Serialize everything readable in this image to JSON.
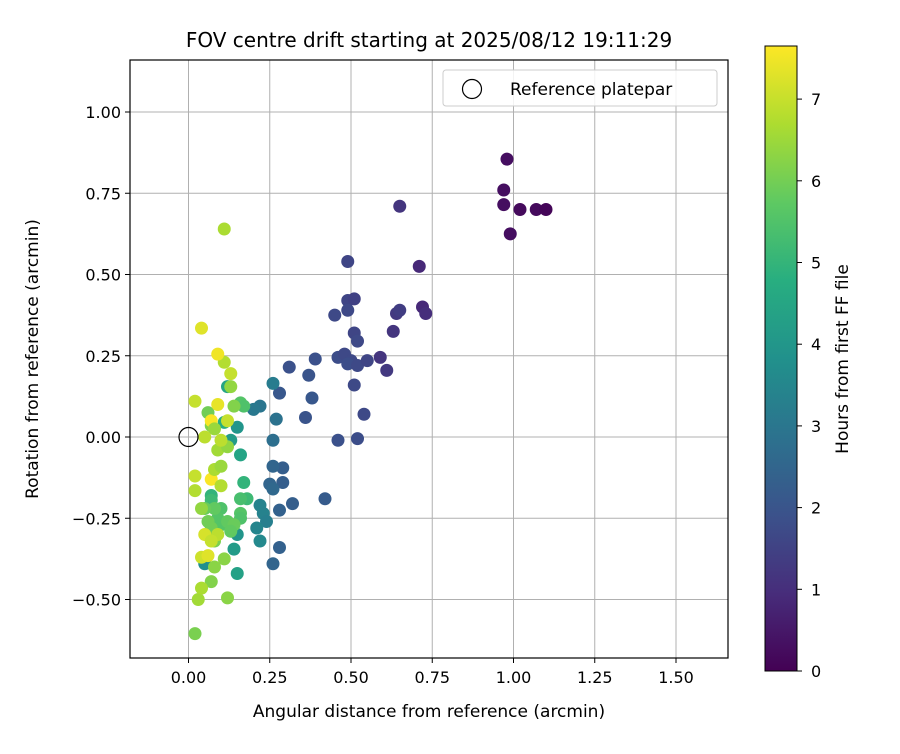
{
  "chart_data": {
    "type": "scatter",
    "title": "FOV centre drift starting at 2025/08/12 19:11:29",
    "xlabel": "Angular distance from reference (arcmin)",
    "ylabel": "Rotation from reference (arcmin)",
    "xlim": [
      -0.18,
      1.66
    ],
    "ylim": [
      -0.68,
      1.16
    ],
    "xticks": [
      "0.00",
      "0.25",
      "0.50",
      "0.75",
      "1.00",
      "1.25",
      "1.50"
    ],
    "yticks": [
      "−0.50",
      "−0.25",
      "0.00",
      "0.25",
      "0.50",
      "0.75",
      "1.00"
    ],
    "grid": true,
    "legend": {
      "placement": "top-right",
      "label": "Reference platepar"
    },
    "reference_point": {
      "x": 0.0,
      "y": 0.0
    },
    "colorbar": {
      "label": "Hours from first FF file",
      "range": [
        0,
        7.65
      ],
      "ticks": [
        "0",
        "1",
        "2",
        "3",
        "4",
        "5",
        "6",
        "7"
      ],
      "colormap": "viridis"
    },
    "points": [
      {
        "x": 0.98,
        "y": 0.855,
        "h": 0.3
      },
      {
        "x": 0.97,
        "y": 0.76,
        "h": 0.3
      },
      {
        "x": 0.97,
        "y": 0.715,
        "h": 0.3
      },
      {
        "x": 1.02,
        "y": 0.7,
        "h": 0.2
      },
      {
        "x": 1.07,
        "y": 0.7,
        "h": 0.2
      },
      {
        "x": 1.1,
        "y": 0.7,
        "h": 0.1
      },
      {
        "x": 0.99,
        "y": 0.625,
        "h": 0.3
      },
      {
        "x": 0.65,
        "y": 0.71,
        "h": 1.2
      },
      {
        "x": 0.71,
        "y": 0.525,
        "h": 0.9
      },
      {
        "x": 0.72,
        "y": 0.4,
        "h": 0.9
      },
      {
        "x": 0.73,
        "y": 0.38,
        "h": 1.0
      },
      {
        "x": 0.64,
        "y": 0.38,
        "h": 1.3
      },
      {
        "x": 0.65,
        "y": 0.39,
        "h": 1.4
      },
      {
        "x": 0.63,
        "y": 0.325,
        "h": 1.2
      },
      {
        "x": 0.59,
        "y": 0.245,
        "h": 1.2
      },
      {
        "x": 0.61,
        "y": 0.205,
        "h": 1.3
      },
      {
        "x": 0.49,
        "y": 0.54,
        "h": 1.6
      },
      {
        "x": 0.49,
        "y": 0.42,
        "h": 1.6
      },
      {
        "x": 0.51,
        "y": 0.425,
        "h": 1.5
      },
      {
        "x": 0.49,
        "y": 0.39,
        "h": 1.7
      },
      {
        "x": 0.45,
        "y": 0.375,
        "h": 1.7
      },
      {
        "x": 0.51,
        "y": 0.32,
        "h": 1.6
      },
      {
        "x": 0.52,
        "y": 0.295,
        "h": 1.7
      },
      {
        "x": 0.46,
        "y": 0.245,
        "h": 1.8
      },
      {
        "x": 0.48,
        "y": 0.255,
        "h": 1.7
      },
      {
        "x": 0.5,
        "y": 0.235,
        "h": 1.7
      },
      {
        "x": 0.49,
        "y": 0.225,
        "h": 1.8
      },
      {
        "x": 0.52,
        "y": 0.22,
        "h": 1.7
      },
      {
        "x": 0.55,
        "y": 0.235,
        "h": 1.6
      },
      {
        "x": 0.51,
        "y": 0.16,
        "h": 1.7
      },
      {
        "x": 0.54,
        "y": 0.07,
        "h": 1.7
      },
      {
        "x": 0.52,
        "y": -0.005,
        "h": 1.8
      },
      {
        "x": 0.46,
        "y": -0.01,
        "h": 1.9
      },
      {
        "x": 0.39,
        "y": 0.24,
        "h": 1.9
      },
      {
        "x": 0.37,
        "y": 0.19,
        "h": 2.0
      },
      {
        "x": 0.38,
        "y": 0.12,
        "h": 2.1
      },
      {
        "x": 0.36,
        "y": 0.06,
        "h": 2.0
      },
      {
        "x": 0.31,
        "y": 0.215,
        "h": 1.9
      },
      {
        "x": 0.28,
        "y": 0.135,
        "h": 2.1
      },
      {
        "x": 0.42,
        "y": -0.19,
        "h": 2.2
      },
      {
        "x": 0.32,
        "y": -0.205,
        "h": 2.3
      },
      {
        "x": 0.28,
        "y": -0.225,
        "h": 2.4
      },
      {
        "x": 0.29,
        "y": -0.095,
        "h": 2.3
      },
      {
        "x": 0.29,
        "y": -0.14,
        "h": 2.3
      },
      {
        "x": 0.26,
        "y": -0.09,
        "h": 2.5
      },
      {
        "x": 0.25,
        "y": -0.145,
        "h": 2.5
      },
      {
        "x": 0.26,
        "y": -0.16,
        "h": 2.6
      },
      {
        "x": 0.28,
        "y": -0.34,
        "h": 2.4
      },
      {
        "x": 0.26,
        "y": -0.39,
        "h": 2.5
      },
      {
        "x": 0.26,
        "y": -0.01,
        "h": 2.8
      },
      {
        "x": 0.27,
        "y": 0.055,
        "h": 2.9
      },
      {
        "x": 0.26,
        "y": 0.165,
        "h": 3.2
      },
      {
        "x": 0.22,
        "y": 0.095,
        "h": 3.0
      },
      {
        "x": 0.2,
        "y": 0.085,
        "h": 3.1
      },
      {
        "x": 0.22,
        "y": -0.21,
        "h": 3.4
      },
      {
        "x": 0.23,
        "y": -0.235,
        "h": 3.4
      },
      {
        "x": 0.24,
        "y": -0.26,
        "h": 3.3
      },
      {
        "x": 0.21,
        "y": -0.28,
        "h": 3.5
      },
      {
        "x": 0.22,
        "y": -0.32,
        "h": 3.6
      },
      {
        "x": 0.15,
        "y": -0.3,
        "h": 4.0
      },
      {
        "x": 0.14,
        "y": -0.345,
        "h": 4.2
      },
      {
        "x": 0.15,
        "y": -0.42,
        "h": 4.4
      },
      {
        "x": 0.15,
        "y": 0.03,
        "h": 4.0
      },
      {
        "x": 0.12,
        "y": 0.155,
        "h": 4.5
      },
      {
        "x": 0.13,
        "y": -0.01,
        "h": 4.2
      },
      {
        "x": 0.16,
        "y": -0.055,
        "h": 4.5
      },
      {
        "x": 0.05,
        "y": -0.39,
        "h": 3.8
      },
      {
        "x": 0.17,
        "y": -0.14,
        "h": 5.0
      },
      {
        "x": 0.18,
        "y": -0.19,
        "h": 5.2
      },
      {
        "x": 0.16,
        "y": -0.19,
        "h": 5.4
      },
      {
        "x": 0.16,
        "y": -0.235,
        "h": 5.6
      },
      {
        "x": 0.16,
        "y": -0.25,
        "h": 5.5
      },
      {
        "x": 0.16,
        "y": 0.105,
        "h": 5.6
      },
      {
        "x": 0.17,
        "y": 0.095,
        "h": 5.5
      },
      {
        "x": 0.11,
        "y": 0.045,
        "h": 4.8
      },
      {
        "x": 0.07,
        "y": -0.18,
        "h": 5.0
      },
      {
        "x": 0.07,
        "y": -0.195,
        "h": 5.2
      },
      {
        "x": 0.1,
        "y": -0.22,
        "h": 5.5
      },
      {
        "x": 0.09,
        "y": -0.25,
        "h": 5.6
      },
      {
        "x": 0.1,
        "y": -0.27,
        "h": 5.6
      },
      {
        "x": 0.08,
        "y": -0.22,
        "h": 5.8
      },
      {
        "x": 0.05,
        "y": -0.22,
        "h": 5.9
      },
      {
        "x": 0.06,
        "y": -0.26,
        "h": 6.0
      },
      {
        "x": 0.07,
        "y": -0.28,
        "h": 6.0
      },
      {
        "x": 0.12,
        "y": -0.26,
        "h": 5.8
      },
      {
        "x": 0.14,
        "y": -0.27,
        "h": 5.9
      },
      {
        "x": 0.13,
        "y": -0.29,
        "h": 5.8
      },
      {
        "x": 0.08,
        "y": -0.32,
        "h": 6.1
      },
      {
        "x": 0.11,
        "y": -0.375,
        "h": 6.3
      },
      {
        "x": 0.08,
        "y": -0.4,
        "h": 6.3
      },
      {
        "x": 0.07,
        "y": -0.445,
        "h": 6.2
      },
      {
        "x": 0.12,
        "y": -0.495,
        "h": 6.3
      },
      {
        "x": 0.02,
        "y": -0.605,
        "h": 6.1
      },
      {
        "x": 0.03,
        "y": -0.5,
        "h": 6.6
      },
      {
        "x": 0.04,
        "y": -0.465,
        "h": 6.7
      },
      {
        "x": 0.09,
        "y": -0.3,
        "h": 6.9
      },
      {
        "x": 0.05,
        "y": -0.3,
        "h": 7.2
      },
      {
        "x": 0.07,
        "y": -0.32,
        "h": 7.0
      },
      {
        "x": 0.04,
        "y": -0.37,
        "h": 7.1
      },
      {
        "x": 0.06,
        "y": -0.365,
        "h": 7.3
      },
      {
        "x": 0.07,
        "y": -0.13,
        "h": 7.6
      },
      {
        "x": 0.1,
        "y": -0.15,
        "h": 6.8
      },
      {
        "x": 0.08,
        "y": -0.1,
        "h": 6.7
      },
      {
        "x": 0.1,
        "y": -0.09,
        "h": 6.5
      },
      {
        "x": 0.09,
        "y": -0.04,
        "h": 6.6
      },
      {
        "x": 0.12,
        "y": -0.03,
        "h": 6.4
      },
      {
        "x": 0.1,
        "y": -0.01,
        "h": 6.9
      },
      {
        "x": 0.07,
        "y": 0.035,
        "h": 6.2
      },
      {
        "x": 0.06,
        "y": 0.075,
        "h": 6.0
      },
      {
        "x": 0.07,
        "y": 0.05,
        "h": 7.6
      },
      {
        "x": 0.08,
        "y": 0.025,
        "h": 6.5
      },
      {
        "x": 0.05,
        "y": 0.0,
        "h": 6.9
      },
      {
        "x": 0.09,
        "y": 0.1,
        "h": 7.4
      },
      {
        "x": 0.12,
        "y": 0.05,
        "h": 7.0
      },
      {
        "x": 0.13,
        "y": 0.195,
        "h": 7.0
      },
      {
        "x": 0.11,
        "y": 0.23,
        "h": 6.8
      },
      {
        "x": 0.09,
        "y": 0.255,
        "h": 7.5
      },
      {
        "x": 0.04,
        "y": 0.335,
        "h": 7.3
      },
      {
        "x": 0.02,
        "y": 0.11,
        "h": 7.0
      },
      {
        "x": 0.02,
        "y": -0.12,
        "h": 7.0
      },
      {
        "x": 0.02,
        "y": -0.165,
        "h": 6.8
      },
      {
        "x": 0.04,
        "y": -0.22,
        "h": 6.4
      },
      {
        "x": 0.11,
        "y": 0.64,
        "h": 6.7
      },
      {
        "x": 0.13,
        "y": 0.155,
        "h": 6.4
      },
      {
        "x": 0.14,
        "y": 0.095,
        "h": 6.2
      }
    ]
  }
}
